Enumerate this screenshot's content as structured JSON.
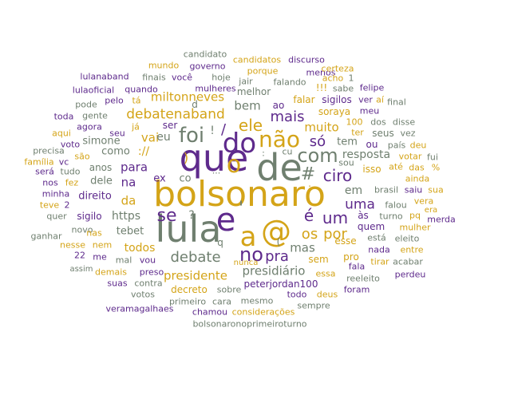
{
  "colors": {
    "purple": "#5e2a8c",
    "gold": "#d4a418",
    "gray": "#6f7f6f"
  },
  "words": [
    {
      "text": "bolsonaro",
      "color": "gold"
    },
    {
      "text": "que",
      "color": "purple"
    },
    {
      "text": "de",
      "color": "gray"
    },
    {
      "text": "lula",
      "color": "gray"
    },
    {
      "text": "e",
      "color": "purple"
    },
    {
      "text": "a",
      "color": "gold"
    },
    {
      "text": "@",
      "color": "gold"
    },
    {
      "text": "do",
      "color": "purple"
    },
    {
      "text": "o",
      "color": "gold"
    },
    {
      "text": "foi",
      "color": "gray"
    },
    {
      "text": "não",
      "color": "gold"
    },
    {
      "text": "no",
      "color": "purple"
    },
    {
      "text": "com",
      "color": "gray"
    },
    {
      "text": "se",
      "color": "purple"
    },
    {
      "text": "ele",
      "color": "gold"
    },
    {
      "text": "debate",
      "color": "gray"
    },
    {
      "text": "#",
      "color": "gray"
    },
    {
      "text": "ciro",
      "color": "purple"
    },
    {
      "text": "um",
      "color": "purple"
    },
    {
      "text": "é",
      "color": "purple"
    },
    {
      "text": "mais",
      "color": "purple"
    },
    {
      "text": "pra",
      "color": "purple"
    },
    {
      "text": "só",
      "color": "purple"
    },
    {
      "text": "os",
      "color": "gold"
    },
    {
      "text": "por",
      "color": "gold"
    },
    {
      "text": "uma",
      "color": "purple"
    },
    {
      "text": "debatenaband",
      "color": "gold"
    },
    {
      "text": "miltonneves",
      "color": "gold"
    },
    {
      "text": "bem",
      "color": "gray"
    },
    {
      "text": "muito",
      "color": "gold"
    },
    {
      "text": "presidente",
      "color": "gold"
    },
    {
      "text": "presidiário",
      "color": "gray"
    },
    {
      "text": "mas",
      "color": "gray"
    },
    {
      "text": "resposta",
      "color": "gray"
    },
    {
      "text": "vai",
      "color": "gold"
    },
    {
      "text": "para",
      "color": "purple"
    },
    {
      "text": "na",
      "color": "purple"
    },
    {
      "text": "da",
      "color": "gold"
    },
    {
      "text": "https",
      "color": "gray"
    },
    {
      "text": "todos",
      "color": "gold"
    },
    {
      "text": "em",
      "color": "gray"
    },
    {
      "text": "tem",
      "color": "gray"
    },
    {
      "text": "eu",
      "color": "gray"
    },
    {
      "text": "como",
      "color": "gray"
    },
    {
      "text": "://",
      "color": "gold"
    },
    {
      "text": "simone",
      "color": "gray"
    },
    {
      "text": "tebet",
      "color": "gray"
    },
    {
      "text": "dele",
      "color": "gray"
    },
    {
      "text": "anos",
      "color": "gray"
    },
    {
      "text": "direito",
      "color": "purple"
    },
    {
      "text": "sigilo",
      "color": "purple"
    },
    {
      "text": "novo",
      "color": "gray"
    },
    {
      "text": "mal",
      "color": "gray"
    },
    {
      "text": "vou",
      "color": "purple"
    },
    {
      "text": "me",
      "color": "purple"
    },
    {
      "text": "nem",
      "color": "gold"
    },
    {
      "text": "nas",
      "color": "gold"
    },
    {
      "text": "22",
      "color": "purple"
    },
    {
      "text": "ganhar",
      "color": "gray"
    },
    {
      "text": "nesse",
      "color": "gold"
    },
    {
      "text": "assim",
      "color": "gray"
    },
    {
      "text": "demais",
      "color": "gold"
    },
    {
      "text": "preso",
      "color": "purple"
    },
    {
      "text": "suas",
      "color": "purple"
    },
    {
      "text": "contra",
      "color": "gray"
    },
    {
      "text": "votos",
      "color": "gray"
    },
    {
      "text": "veramagalhaes",
      "color": "purple"
    },
    {
      "text": "decreto",
      "color": "gold"
    },
    {
      "text": "primeiro",
      "color": "gray"
    },
    {
      "text": "chamou",
      "color": "purple"
    },
    {
      "text": "sobre",
      "color": "gray"
    },
    {
      "text": "cara",
      "color": "gray"
    },
    {
      "text": "mesmo",
      "color": "gray"
    },
    {
      "text": "considerações",
      "color": "gold"
    },
    {
      "text": "bolsonaronoprimeiroturno",
      "color": "gray"
    },
    {
      "text": "peterjordan100",
      "color": "purple"
    },
    {
      "text": "todo",
      "color": "purple"
    },
    {
      "text": "deus",
      "color": "gold"
    },
    {
      "text": "sempre",
      "color": "gray"
    },
    {
      "text": "foram",
      "color": "purple"
    },
    {
      "text": "essa",
      "color": "gold"
    },
    {
      "text": "reeleito",
      "color": "gray"
    },
    {
      "text": "nunca",
      "color": "gold"
    },
    {
      "text": "sem",
      "color": "gold"
    },
    {
      "text": "pro",
      "color": "gold"
    },
    {
      "text": "fala",
      "color": "purple"
    },
    {
      "text": "tirar",
      "color": "gold"
    },
    {
      "text": "acabar",
      "color": "gray"
    },
    {
      "text": "perdeu",
      "color": "purple"
    },
    {
      "text": "eleito",
      "color": "gray"
    },
    {
      "text": "está",
      "color": "gray"
    },
    {
      "text": "mulher",
      "color": "gold"
    },
    {
      "text": "entre",
      "color": "gold"
    },
    {
      "text": "esse",
      "color": "gold"
    },
    {
      "text": "quem",
      "color": "purple"
    },
    {
      "text": "nada",
      "color": "purple"
    },
    {
      "text": "às",
      "color": "purple"
    },
    {
      "text": "turno",
      "color": "gray"
    },
    {
      "text": "pq",
      "color": "gold"
    },
    {
      "text": "merda",
      "color": "purple"
    },
    {
      "text": "falou",
      "color": "gray"
    },
    {
      "text": "brasil",
      "color": "gray"
    },
    {
      "text": "saiu",
      "color": "purple"
    },
    {
      "text": "sua",
      "color": "gold"
    },
    {
      "text": "era",
      "color": "gold"
    },
    {
      "text": "vera",
      "color": "gold"
    },
    {
      "text": "ainda",
      "color": "gold"
    },
    {
      "text": "das",
      "color": "gold"
    },
    {
      "text": "%",
      "color": "gold"
    },
    {
      "text": "até",
      "color": "gold"
    },
    {
      "text": "votar",
      "color": "gold"
    },
    {
      "text": "fui",
      "color": "gray"
    },
    {
      "text": "país",
      "color": "gray"
    },
    {
      "text": "deu",
      "color": "gold"
    },
    {
      "text": "ou",
      "color": "purple"
    },
    {
      "text": "seus",
      "color": "gray"
    },
    {
      "text": "vez",
      "color": "gray"
    },
    {
      "text": "dos",
      "color": "gray"
    },
    {
      "text": "disse",
      "color": "gray"
    },
    {
      "text": "100",
      "color": "gold"
    },
    {
      "text": "ter",
      "color": "gold"
    },
    {
      "text": "isso",
      "color": "gold"
    },
    {
      "text": "sou",
      "color": "gray"
    },
    {
      "text": "soraya",
      "color": "gold"
    },
    {
      "text": "meu",
      "color": "purple"
    },
    {
      "text": "sigilos",
      "color": "purple"
    },
    {
      "text": "falar",
      "color": "gold"
    },
    {
      "text": "ver",
      "color": "purple"
    },
    {
      "text": "aí",
      "color": "gold"
    },
    {
      "text": "final",
      "color": "gray"
    },
    {
      "text": "sabe",
      "color": "gray"
    },
    {
      "text": "felipe",
      "color": "purple"
    },
    {
      "text": "!!!",
      "color": "gold"
    },
    {
      "text": "menos",
      "color": "purple"
    },
    {
      "text": "acho",
      "color": "gold"
    },
    {
      "text": "certeza",
      "color": "gold"
    },
    {
      "text": "1",
      "color": "gray"
    },
    {
      "text": "ao",
      "color": "purple"
    },
    {
      "text": "melhor",
      "color": "gray"
    },
    {
      "text": "porque",
      "color": "gold"
    },
    {
      "text": "falando",
      "color": "gray"
    },
    {
      "text": "jair",
      "color": "gray"
    },
    {
      "text": "discurso",
      "color": "purple"
    },
    {
      "text": "candidatos",
      "color": "gold"
    },
    {
      "text": "candidato",
      "color": "gray"
    },
    {
      "text": "mundo",
      "color": "gold"
    },
    {
      "text": "governo",
      "color": "purple"
    },
    {
      "text": "você",
      "color": "purple"
    },
    {
      "text": "hoje",
      "color": "gray"
    },
    {
      "text": "mulheres",
      "color": "purple"
    },
    {
      "text": "finais",
      "color": "gray"
    },
    {
      "text": "lulanaband",
      "color": "purple"
    },
    {
      "text": "quando",
      "color": "purple"
    },
    {
      "text": "lulaoficial",
      "color": "purple"
    },
    {
      "text": "pelo",
      "color": "purple"
    },
    {
      "text": "tá",
      "color": "gold"
    },
    {
      "text": "pode",
      "color": "gray"
    },
    {
      "text": "gente",
      "color": "gray"
    },
    {
      "text": "toda",
      "color": "purple"
    },
    {
      "text": "agora",
      "color": "purple"
    },
    {
      "text": "aqui",
      "color": "gold"
    },
    {
      "text": "seu",
      "color": "purple"
    },
    {
      "text": "já",
      "color": "gold"
    },
    {
      "text": "ser",
      "color": "purple"
    },
    {
      "text": "voto",
      "color": "purple"
    },
    {
      "text": "são",
      "color": "gold"
    },
    {
      "text": "precisa",
      "color": "gray"
    },
    {
      "text": "família",
      "color": "gold"
    },
    {
      "text": "vc",
      "color": "purple"
    },
    {
      "text": "será",
      "color": "purple"
    },
    {
      "text": "tudo",
      "color": "gray"
    },
    {
      "text": "nos",
      "color": "purple"
    },
    {
      "text": "fez",
      "color": "gold"
    },
    {
      "text": "minha",
      "color": "purple"
    },
    {
      "text": "teve",
      "color": "gold"
    },
    {
      "text": "2",
      "color": "purple"
    },
    {
      "text": "quer",
      "color": "gray"
    },
    {
      "text": "ex",
      "color": "purple"
    },
    {
      "text": "co",
      "color": "gray"
    },
    {
      "text": "?",
      "color": "gray"
    },
    {
      "text": "!",
      "color": "gray"
    },
    {
      "text": "/",
      "color": "purple"
    },
    {
      "text": "q",
      "color": "gray"
    },
    {
      "text": "d",
      "color": "gray"
    },
    {
      "text": "cu",
      "color": "gray"
    },
    {
      "text": "'",
      "color": "gray"
    },
    {
      "text": "...",
      "color": "gray"
    },
    {
      "text": ")",
      "color": "gold"
    },
    {
      "text": "(",
      "color": "gray"
    },
    {
      "text": ":",
      "color": "gray"
    },
    {
      "text": ".",
      "color": "gold"
    }
  ]
}
